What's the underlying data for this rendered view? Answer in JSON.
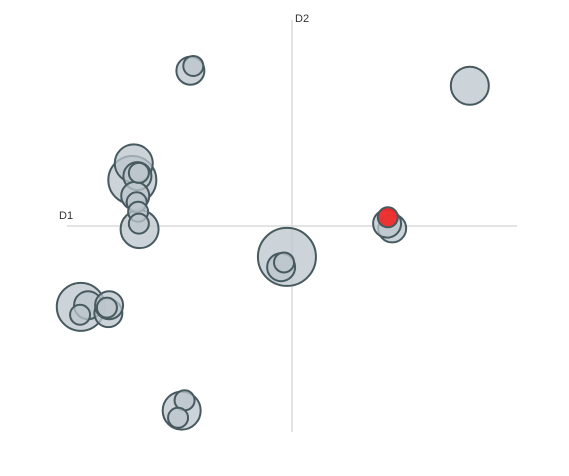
{
  "chart_data": {
    "type": "scatter",
    "title": "",
    "xlabel": "D1",
    "ylabel": "D2",
    "xlim": [
      -3.1,
      3.1
    ],
    "ylim": [
      -2.6,
      2.6
    ],
    "grid": false,
    "legend": "none",
    "colors": {
      "bubble_fill": "#bcc6cc",
      "bubble_stroke": "#465a60",
      "highlight_fill": "#ee2a2a",
      "highlight_stroke": "#465a60",
      "axis": "#dcdcdc"
    },
    "points": [
      {
        "x": -1.4,
        "y": 1.96,
        "size": 2
      },
      {
        "x": -1.36,
        "y": 2.02,
        "size": 1
      },
      {
        "x": 2.45,
        "y": 1.77,
        "size": 3
      },
      {
        "x": -2.18,
        "y": 0.79,
        "size": 3
      },
      {
        "x": -2.13,
        "y": 0.63,
        "size": 2
      },
      {
        "x": -2.2,
        "y": 0.58,
        "size": 4
      },
      {
        "x": -2.11,
        "y": 0.67,
        "size": 1
      },
      {
        "x": -2.16,
        "y": 0.38,
        "size": 2
      },
      {
        "x": -2.14,
        "y": 0.3,
        "size": 1
      },
      {
        "x": -2.12,
        "y": 0.18,
        "size": 1
      },
      {
        "x": -2.11,
        "y": 0.03,
        "size": 1
      },
      {
        "x": -2.1,
        "y": -0.04,
        "size": 3
      },
      {
        "x": -0.07,
        "y": -0.39,
        "size": 5
      },
      {
        "x": -0.15,
        "y": -0.52,
        "size": 2
      },
      {
        "x": -0.11,
        "y": -0.46,
        "size": 1
      },
      {
        "x": 1.38,
        "y": -0.03,
        "size": 2
      },
      {
        "x": 1.31,
        "y": 0.03,
        "size": 2
      },
      {
        "x": 1.32,
        "y": 0.11,
        "size": 1,
        "highlight": true
      },
      {
        "x": -2.91,
        "y": -1.02,
        "size": 4
      },
      {
        "x": -2.81,
        "y": -1.0,
        "size": 2
      },
      {
        "x": -2.53,
        "y": -1.1,
        "size": 2
      },
      {
        "x": -2.52,
        "y": -1.0,
        "size": 2
      },
      {
        "x": -2.55,
        "y": -1.03,
        "size": 1
      },
      {
        "x": -2.92,
        "y": -1.12,
        "size": 1
      },
      {
        "x": -1.52,
        "y": -2.33,
        "size": 3
      },
      {
        "x": -1.48,
        "y": -2.2,
        "size": 1
      },
      {
        "x": -1.57,
        "y": -2.42,
        "size": 1
      }
    ]
  }
}
